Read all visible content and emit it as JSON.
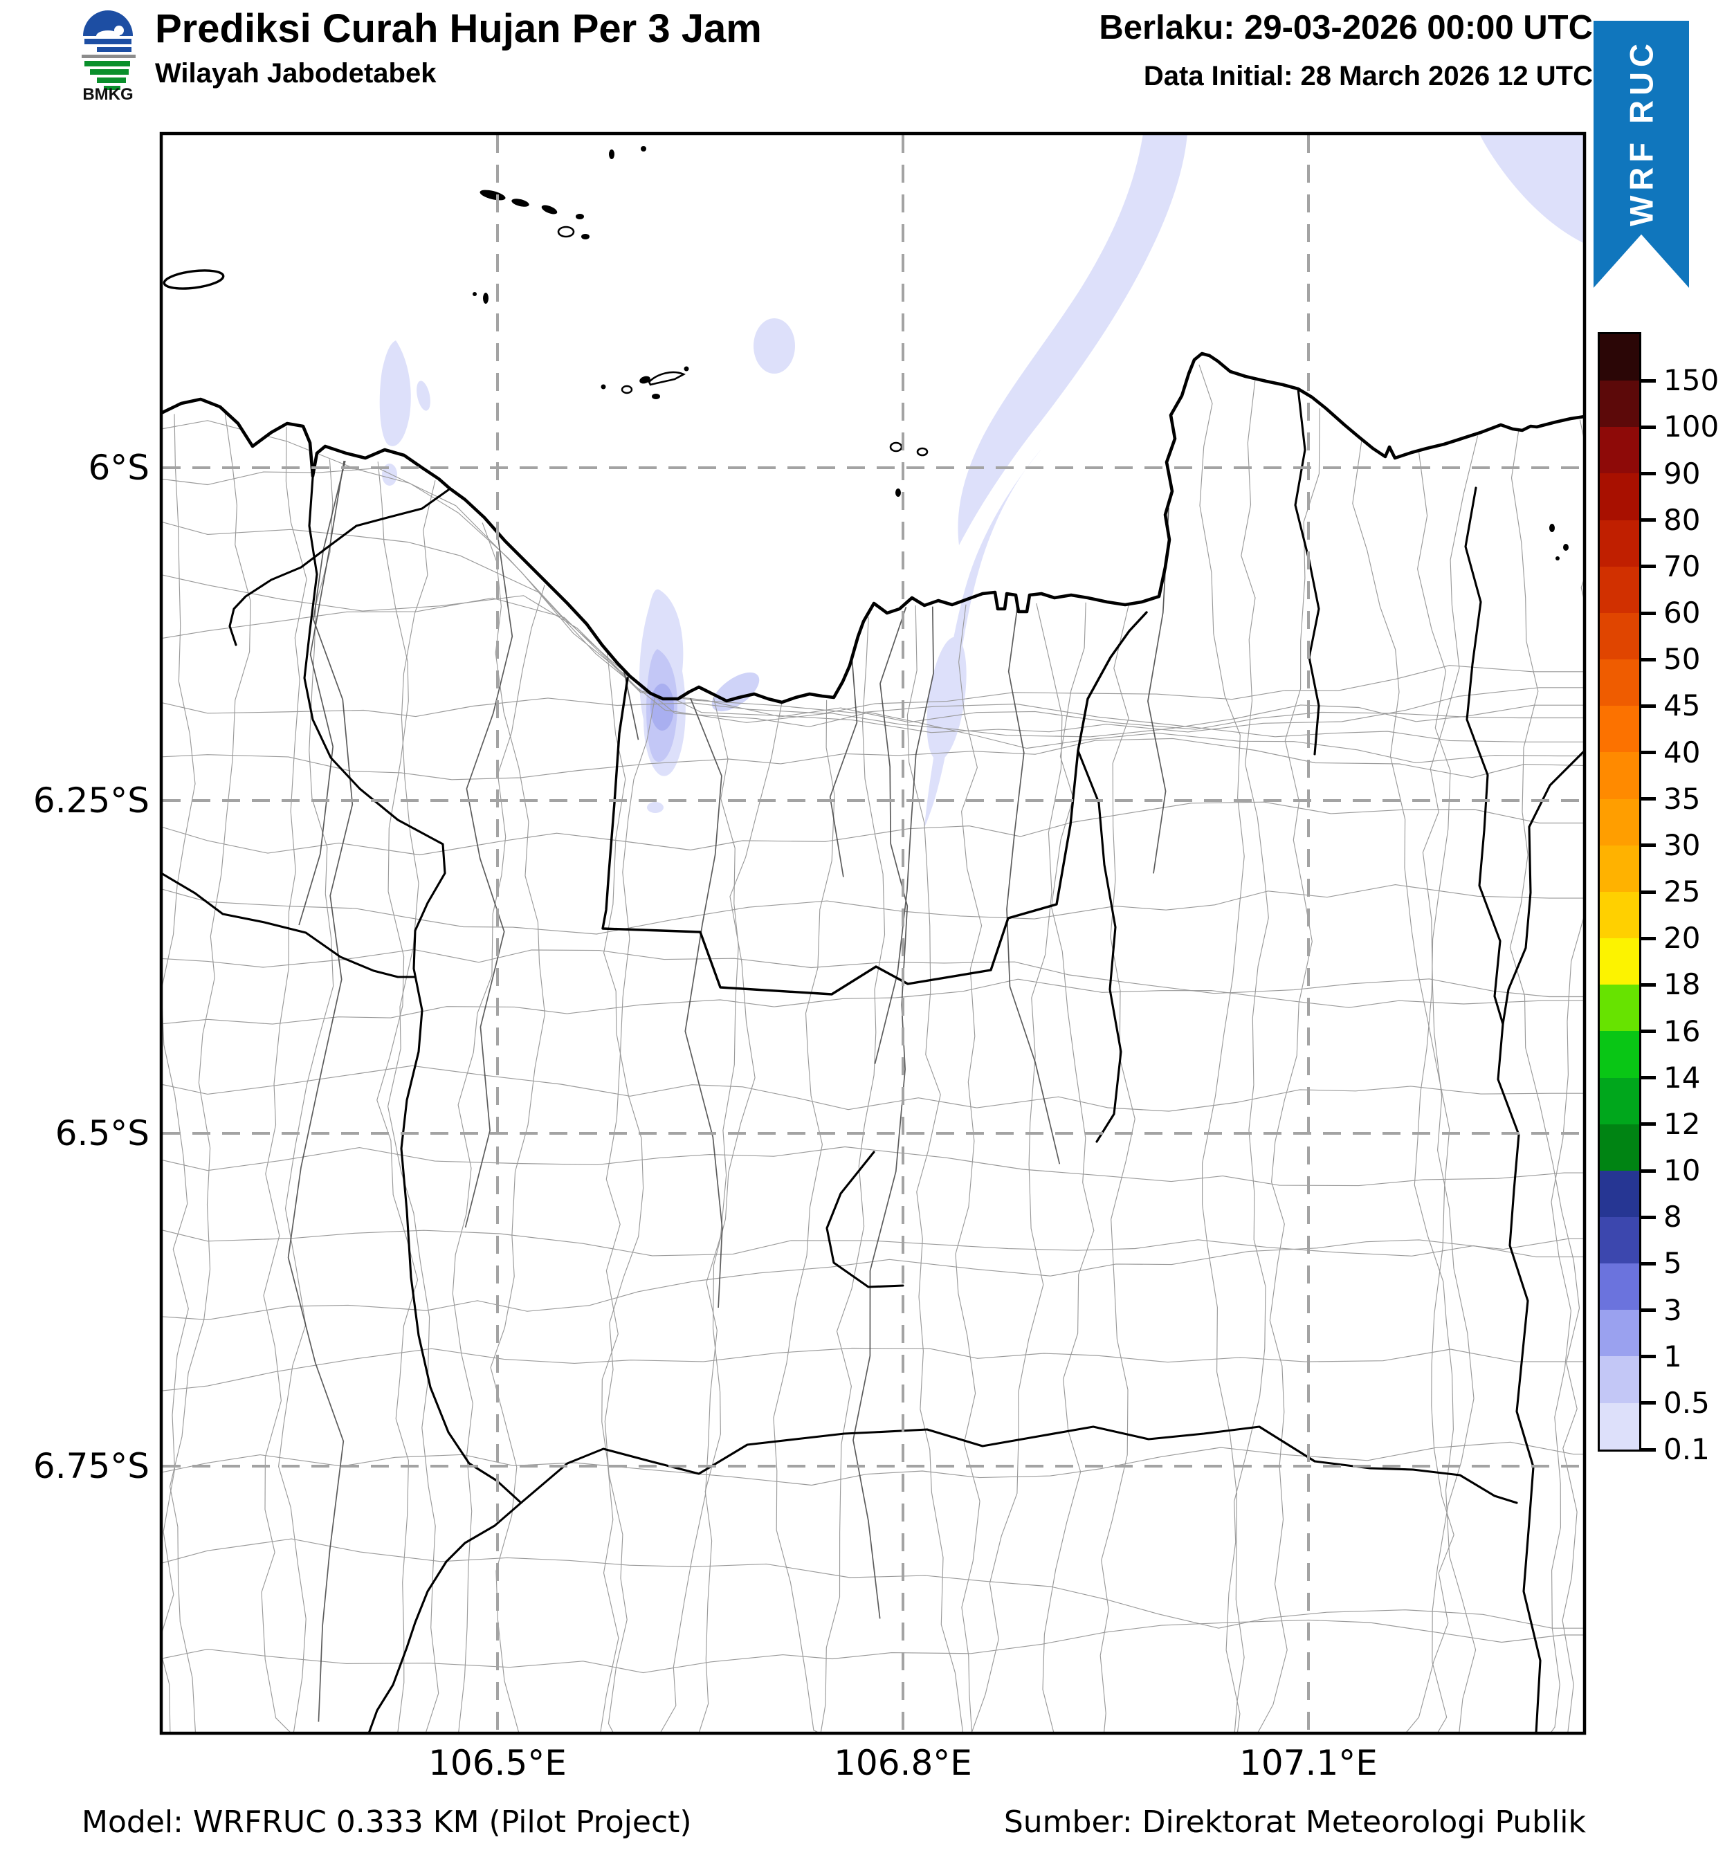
{
  "header": {
    "logo_text": "BMKG",
    "title": "Prediksi Curah Hujan Per 3 Jam",
    "subtitle": "Wilayah Jabodetabek",
    "valid": "Berlaku: 29-03-2026 00:00 UTC",
    "initial": "Data Initial: 28 March 2026 12 UTC"
  },
  "ribbon": {
    "text": "WRF RUC",
    "color": "#1076bd"
  },
  "axes": {
    "x_tick_labels": [
      "106.5°E",
      "106.8°E",
      "107.1°E"
    ],
    "y_tick_labels": [
      "6°S",
      "6.25°S",
      "6.5°S",
      "6.75°S"
    ]
  },
  "colorbar": {
    "segments": [
      {
        "color": "#2b0606",
        "label": "150"
      },
      {
        "color": "#5c0909",
        "label": "100"
      },
      {
        "color": "#8e0a08",
        "label": "90"
      },
      {
        "color": "#a81000",
        "label": "80"
      },
      {
        "color": "#c01f00",
        "label": "70"
      },
      {
        "color": "#d13000",
        "label": "60"
      },
      {
        "color": "#e04500",
        "label": "50"
      },
      {
        "color": "#ef5c00",
        "label": "45"
      },
      {
        "color": "#fc7200",
        "label": "40"
      },
      {
        "color": "#ff8a00",
        "label": "35"
      },
      {
        "color": "#ff9e00",
        "label": "30"
      },
      {
        "color": "#ffb200",
        "label": "25"
      },
      {
        "color": "#ffd000",
        "label": "20"
      },
      {
        "color": "#fcf300",
        "label": "18"
      },
      {
        "color": "#67e300",
        "label": "16"
      },
      {
        "color": "#09c615",
        "label": "14"
      },
      {
        "color": "#00a71c",
        "label": "12"
      },
      {
        "color": "#008413",
        "label": "10"
      },
      {
        "color": "#263693",
        "label": "8"
      },
      {
        "color": "#3c47ae",
        "label": "5"
      },
      {
        "color": "#6b73dd",
        "label": "3"
      },
      {
        "color": "#9aa1ef",
        "label": "1"
      },
      {
        "color": "#c3c7f6",
        "label": "0.5"
      },
      {
        "color": "#dde0fa",
        "label": "0.1"
      }
    ]
  },
  "footer": {
    "model": "Model: WRFRUC 0.333 KM (Pilot Project)",
    "source": "Sumber: Direktorat Meteorologi Publik"
  },
  "chart_data": {
    "type": "heatmap",
    "title": "Prediksi Curah Hujan Per 3 Jam",
    "subtitle": "Wilayah Jabodetabek",
    "valid_time": "29-03-2026 00:00 UTC",
    "initial_time": "28 March 2026 12 UTC",
    "model": "WRFRUC 0.333 KM (Pilot Project)",
    "source": "Direktorat Meteorologi Publik",
    "x_ticks": [
      "106.5°E",
      "106.8°E",
      "107.1°E"
    ],
    "y_ticks": [
      "6°S",
      "6.25°S",
      "6.5°S",
      "6.75°S"
    ],
    "grid": true,
    "legend_position": "right",
    "scale_boundaries_top_to_bottom": [
      150,
      100,
      90,
      80,
      70,
      60,
      50,
      45,
      40,
      35,
      30,
      25,
      20,
      18,
      16,
      14,
      12,
      10,
      8,
      5,
      3,
      1,
      0.5,
      0.1
    ],
    "rain_areas": [
      {
        "intensity_mm": "0.1–1",
        "location": "elongated SW–NE streak offshore, north-east of Jakarta Bay (~106.95°E, 5.75–6.1°S)"
      },
      {
        "intensity_mm": "0.1–3",
        "location": "cluster over North/West Jakarta (~106.72°E, ~6.2°S) with small darker core"
      },
      {
        "intensity_mm": "0.1–0.5",
        "location": "top-right corner of domain (~107.3°E, ~5.75°S)"
      },
      {
        "intensity_mm": "0.1–0.5",
        "location": "small cells near coast west of Jakarta Bay (~106.6°E, ~5.95°S) and one isolated dot offshore (~106.77°E, ~5.9°S)"
      }
    ]
  }
}
